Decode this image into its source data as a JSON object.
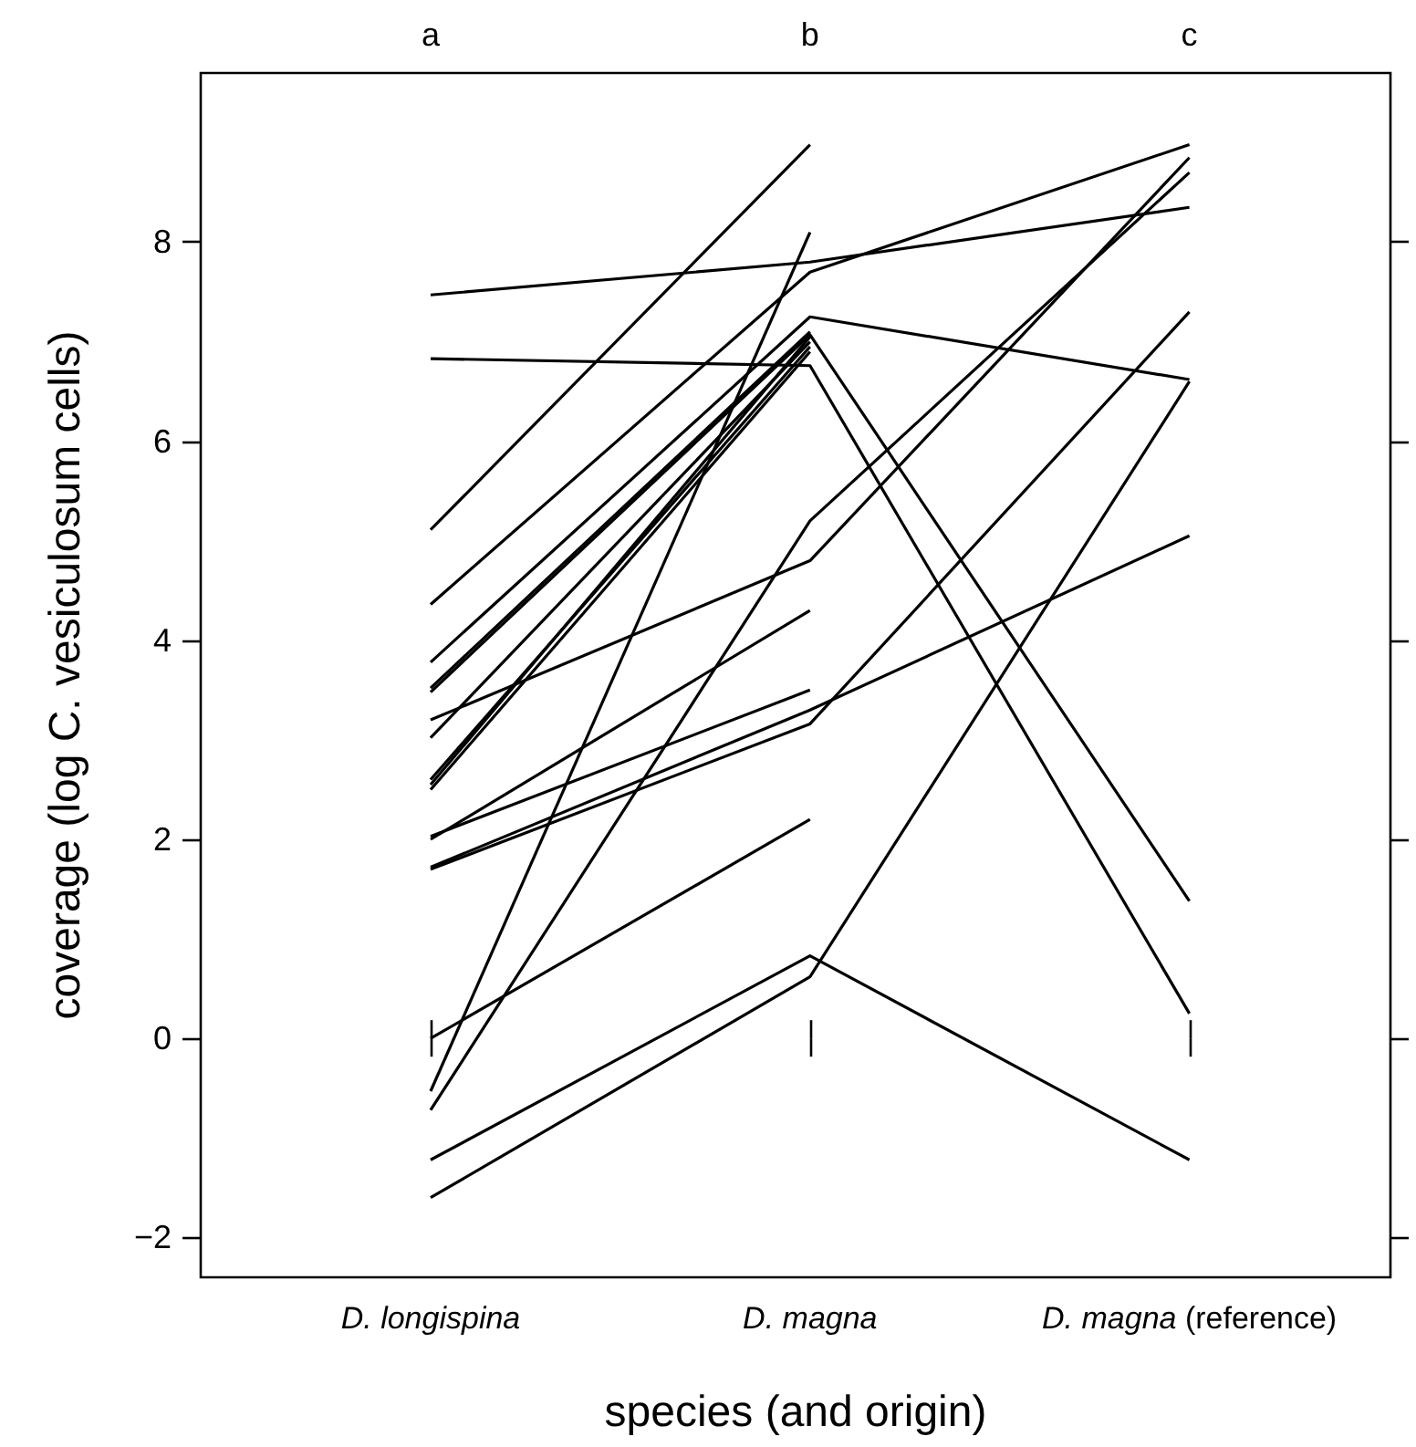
{
  "chart_data": {
    "type": "line",
    "xlabel": "species (and origin)",
    "ylabel": "coverage (log C. vesiculosum cells)",
    "categories": [
      "D. longispina",
      "D. magna",
      "D. magna (reference)"
    ],
    "annotations": [
      "a",
      "b",
      "c"
    ],
    "ylim": [
      -2.4,
      9.7
    ],
    "yticks": [
      -2,
      0,
      2,
      4,
      6,
      8
    ],
    "grid": false,
    "marker": "none",
    "line_style": "solid",
    "series": [
      {
        "color": "#000000",
        "values": [
          7.47,
          7.8,
          8.35
        ]
      },
      {
        "color": "#000000",
        "values": [
          6.83,
          6.76,
          0.25
        ]
      },
      {
        "color": "#000000",
        "values": [
          5.11,
          8.98,
          null
        ]
      },
      {
        "color": "#000000",
        "values": [
          4.36,
          7.7,
          8.98
        ]
      },
      {
        "color": "#000000",
        "values": [
          3.78,
          7.25,
          6.62
        ]
      },
      {
        "color": "#000000",
        "values": [
          3.52,
          7.1,
          null
        ]
      },
      {
        "color": "#000000",
        "values": [
          3.48,
          7.07,
          1.38
        ]
      },
      {
        "color": "#000000",
        "values": [
          3.2,
          4.8,
          8.85
        ]
      },
      {
        "color": "#000000",
        "values": [
          3.02,
          7.0,
          null
        ]
      },
      {
        "color": "#000000",
        "values": [
          2.6,
          6.95,
          null
        ]
      },
      {
        "color": "#000000",
        "values": [
          2.55,
          7.05,
          null
        ]
      },
      {
        "color": "#000000",
        "values": [
          2.5,
          6.9,
          null
        ]
      },
      {
        "color": "#000000",
        "values": [
          2.03,
          3.5,
          null
        ]
      },
      {
        "color": "#000000",
        "values": [
          2.0,
          4.3,
          null
        ]
      },
      {
        "color": "#000000",
        "values": [
          1.72,
          3.3,
          5.05
        ]
      },
      {
        "color": "#000000",
        "values": [
          1.7,
          3.16,
          7.3
        ]
      },
      {
        "color": "#000000",
        "values": [
          0,
          2.2,
          null
        ]
      },
      {
        "color": "#000000",
        "values": [
          -0.53,
          8.1,
          null
        ]
      },
      {
        "color": "#000000",
        "values": [
          -0.72,
          5.2,
          8.7
        ]
      },
      {
        "color": "#000000",
        "values": [
          -1.22,
          0.83,
          -1.22
        ]
      },
      {
        "color": "#000000",
        "values": [
          -1.6,
          0.62,
          6.6
        ]
      }
    ]
  }
}
